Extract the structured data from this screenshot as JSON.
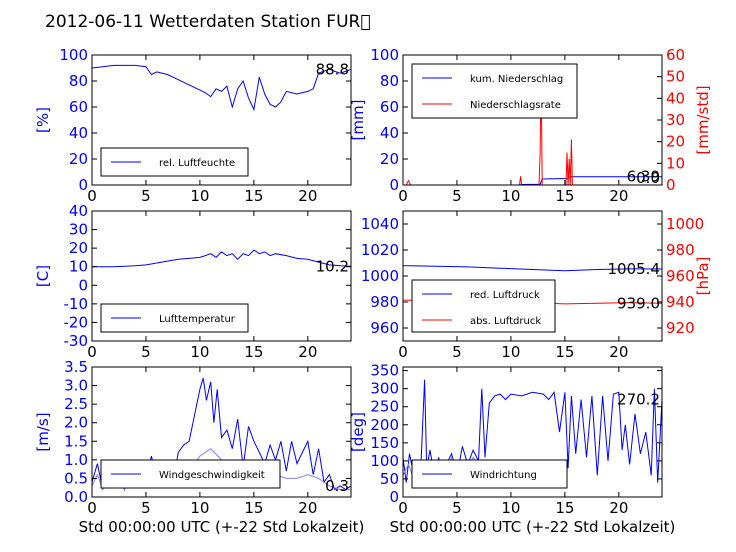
{
  "page": {
    "title": "2012-06-11 Wetterdaten Station FUR\u0000"
  },
  "colors": {
    "blue": "#0000ff",
    "red": "#ff0000",
    "lightblue": "#8080ff",
    "axis": "#000000"
  },
  "chart_data": [
    {
      "id": "p1",
      "type": "line",
      "ylabel": "[%]",
      "xlabel": "",
      "xlim": [
        0,
        24
      ],
      "ylim": [
        0,
        100
      ],
      "xticks": [
        0,
        5,
        10,
        15,
        20
      ],
      "yticks": [
        0,
        20,
        40,
        60,
        80,
        100
      ],
      "last_value": "88.8",
      "legend": "rel. Luftfeuchte",
      "series": [
        {
          "name": "rel. Luftfeuchte",
          "color": "#0000ff",
          "x": [
            0,
            1,
            2,
            3,
            4,
            5,
            5.5,
            6,
            7,
            8,
            9,
            10,
            10.5,
            11,
            11.5,
            12,
            12.5,
            13,
            13.5,
            14,
            14.5,
            15,
            15.5,
            16,
            16.5,
            17,
            17.5,
            18,
            19,
            20,
            20.5,
            21,
            22,
            23,
            24
          ],
          "y": [
            90,
            91,
            92,
            92,
            92,
            91,
            85,
            87,
            85,
            81,
            77,
            73,
            71,
            68,
            74,
            72,
            76,
            60,
            74,
            80,
            67,
            58,
            83,
            70,
            62,
            60,
            64,
            72,
            70,
            72,
            74,
            86,
            89,
            86,
            89
          ]
        }
      ]
    },
    {
      "id": "p2",
      "type": "line",
      "ylabel": "[mm]",
      "ylabel2": "[mm/std]",
      "xlabel": "",
      "xlim": [
        0,
        24
      ],
      "ylim": [
        0,
        100
      ],
      "ylim2": [
        0,
        60
      ],
      "xticks": [
        0,
        5,
        10,
        15,
        20
      ],
      "yticks": [
        0,
        20,
        40,
        60,
        80,
        100
      ],
      "yticks2": [
        0,
        10,
        20,
        30,
        40,
        50,
        60
      ],
      "last_value": "6.39",
      "last_value2": "0.0",
      "legend": [
        "kum. Niederschlag",
        "Niederschlagsrate"
      ],
      "series": [
        {
          "name": "kum. Niederschlag",
          "color": "#0000ff",
          "axis": "left",
          "x": [
            0,
            10.8,
            11,
            12.7,
            12.9,
            15.2,
            15.5,
            24
          ],
          "y": [
            0,
            0,
            0.4,
            0.6,
            4.6,
            5.0,
            6.4,
            6.4
          ]
        },
        {
          "name": "Niederschlagsrate",
          "color": "#ff0000",
          "axis": "right",
          "x": [
            0,
            0.3,
            0.5,
            0.7,
            1,
            10.8,
            10.9,
            11,
            12.6,
            12.7,
            12.8,
            12.9,
            13.1,
            15.1,
            15.2,
            15.3,
            15.4,
            15.5,
            15.6,
            15.7,
            24
          ],
          "y": [
            0,
            0,
            2,
            0,
            0,
            0,
            4,
            0,
            0,
            14,
            53,
            0,
            0,
            0,
            15,
            0,
            12,
            0,
            21,
            0,
            0
          ]
        }
      ]
    },
    {
      "id": "p3",
      "type": "line",
      "ylabel": "[C]",
      "xlabel": "",
      "xlim": [
        0,
        24
      ],
      "ylim": [
        -30,
        40
      ],
      "xticks": [
        0,
        5,
        10,
        15,
        20
      ],
      "yticks": [
        -30,
        -20,
        -10,
        0,
        10,
        20,
        30,
        40
      ],
      "last_value": "10.2",
      "legend": "Lufttemperatur",
      "series": [
        {
          "name": "Lufttemperatur",
          "color": "#0000ff",
          "x": [
            0,
            2,
            4,
            5,
            6,
            7,
            8,
            9,
            10,
            10.5,
            11,
            11.5,
            12,
            12.5,
            13,
            13.5,
            14,
            14.5,
            15,
            15.5,
            16,
            16.5,
            17,
            18,
            19,
            20,
            21,
            22,
            23,
            24
          ],
          "y": [
            10,
            10,
            10.5,
            11,
            12,
            13,
            14,
            14.5,
            15,
            16,
            17,
            15,
            18,
            16,
            17,
            14,
            17,
            16,
            19,
            17,
            18,
            16,
            17,
            16,
            14.5,
            14,
            12.5,
            11,
            10.5,
            10.2
          ]
        }
      ]
    },
    {
      "id": "p4",
      "type": "line",
      "ylabel": "",
      "ylabel2": "[hPa]",
      "xlabel": "",
      "xlim": [
        0,
        24
      ],
      "ylim": [
        950,
        1050
      ],
      "ylim2": [
        910,
        1010
      ],
      "xticks": [
        0,
        5,
        10,
        15,
        20
      ],
      "yticks": [
        960,
        980,
        1000,
        1020,
        1040
      ],
      "yticks2": [
        920,
        940,
        960,
        980,
        1000
      ],
      "last_value": "1005.4",
      "last_value2": "939.0",
      "legend": [
        "red. Luftdruck",
        "abs. Luftdruck"
      ],
      "series": [
        {
          "name": "red. Luftdruck",
          "color": "#0000ff",
          "axis": "left",
          "x": [
            0,
            3,
            6,
            9,
            12,
            15,
            18,
            21,
            24
          ],
          "y": [
            1008,
            1007.5,
            1007,
            1006,
            1005,
            1004,
            1005,
            1005.5,
            1005.4
          ]
        },
        {
          "name": "abs. Luftdruck",
          "color": "#ff0000",
          "axis": "right",
          "x": [
            0,
            3,
            6,
            9,
            12,
            15,
            18,
            21,
            24
          ],
          "y": [
            941.5,
            941,
            940.5,
            940,
            939.5,
            938.5,
            939,
            939.5,
            939.0
          ]
        }
      ]
    },
    {
      "id": "p5",
      "type": "line",
      "ylabel": "[m/s]",
      "xlabel": "Std 00:00:00 UTC (+-22 Std Lokalzeit)",
      "xlim": [
        0,
        24
      ],
      "ylim": [
        0,
        3.5
      ],
      "xticks": [
        0,
        5,
        10,
        15,
        20
      ],
      "yticks": [
        0,
        0.5,
        1.0,
        1.5,
        2.0,
        2.5,
        3.0,
        3.5
      ],
      "last_value": "0.3",
      "legend": "Windgeschwindigkeit",
      "series": [
        {
          "name": "Windgeschwindigkeit",
          "color": "#0000ff",
          "x": [
            0,
            0.5,
            1,
            1.5,
            2,
            2.5,
            3,
            3.5,
            4,
            4.5,
            5,
            5.5,
            6,
            6.5,
            7,
            7.5,
            8,
            8.5,
            9,
            9.5,
            10,
            10.3,
            10.6,
            11,
            11.3,
            11.6,
            12,
            12.5,
            13,
            13.5,
            14,
            14.5,
            15,
            15.5,
            16,
            16.5,
            17,
            17.5,
            18,
            18.5,
            19,
            19.5,
            20,
            20.5,
            21,
            21.5,
            22,
            22.5,
            23,
            23.5,
            24
          ],
          "y": [
            0.4,
            0.9,
            0.2,
            0.7,
            0.3,
            0.6,
            0.2,
            0.8,
            0.3,
            0.5,
            0.4,
            1.1,
            0.5,
            0.7,
            0.6,
            0.4,
            1.2,
            1.4,
            1.5,
            2.2,
            2.9,
            3.2,
            2.6,
            3.1,
            2.0,
            2.9,
            1.6,
            1.8,
            1.3,
            2.1,
            0.8,
            1.9,
            1.5,
            1.2,
            0.9,
            1.4,
            1.0,
            1.5,
            0.7,
            1.5,
            0.9,
            1.2,
            1.5,
            0.6,
            1.3,
            0.4,
            0.6,
            0.2,
            0.3,
            0.2,
            0.3
          ]
        },
        {
          "name": "",
          "color": "#8080ff",
          "x": [
            0,
            0.5,
            1,
            1.5,
            2,
            2.5,
            3,
            3.5,
            4,
            4.5,
            5,
            5.5,
            6,
            6.5,
            7,
            7.5,
            8,
            9,
            10,
            11,
            12,
            13,
            14,
            15,
            16,
            17,
            18,
            19,
            20,
            21,
            22,
            23,
            24
          ],
          "y": [
            0.3,
            0.6,
            0.2,
            0.4,
            0.3,
            0.5,
            0.2,
            0.4,
            0.3,
            0.4,
            0.3,
            0.6,
            0.4,
            0.5,
            0.4,
            0.3,
            0.5,
            0.7,
            1.1,
            1.3,
            1.0,
            0.9,
            0.8,
            0.7,
            0.6,
            0.6,
            0.5,
            0.5,
            0.6,
            0.5,
            0.3,
            0.2,
            0.2
          ]
        }
      ]
    },
    {
      "id": "p6",
      "type": "line",
      "ylabel": "[deg]",
      "xlabel": "Std 00:00:00 UTC (+-22 Std Lokalzeit)",
      "xlim": [
        0,
        24
      ],
      "ylim": [
        0,
        360
      ],
      "xticks": [
        0,
        5,
        10,
        15,
        20
      ],
      "yticks": [
        0,
        50,
        100,
        150,
        200,
        250,
        300,
        350
      ],
      "last_value": "270.2",
      "legend": "Windrichtung",
      "series": [
        {
          "name": "Windrichtung",
          "color": "#0000ff",
          "x": [
            0,
            0.3,
            0.6,
            1,
            1.3,
            1.6,
            2,
            2.2,
            2.5,
            3,
            3.3,
            3.6,
            4,
            4.5,
            5,
            5.5,
            6,
            6.5,
            7,
            7.3,
            7.6,
            8,
            8.5,
            9,
            9.5,
            10,
            11,
            12,
            13,
            13.5,
            14,
            14.5,
            15,
            15.3,
            15.6,
            16,
            16.5,
            17,
            17.5,
            18,
            18.5,
            19,
            19.5,
            20,
            20.3,
            20.6,
            21,
            21.5,
            22,
            22.5,
            23,
            23.3,
            23.6,
            24
          ],
          "y": [
            110,
            40,
            120,
            60,
            100,
            50,
            325,
            80,
            130,
            40,
            110,
            60,
            90,
            120,
            60,
            140,
            90,
            130,
            100,
            300,
            110,
            260,
            280,
            285,
            270,
            285,
            280,
            290,
            285,
            270,
            290,
            180,
            290,
            80,
            280,
            120,
            270,
            110,
            280,
            60,
            280,
            100,
            285,
            290,
            130,
            200,
            90,
            230,
            120,
            180,
            60,
            300,
            40,
            270
          ]
        },
        {
          "name": "",
          "color": "#8080ff",
          "x": [
            0,
            0.5,
            1,
            1.5,
            2,
            2.5,
            3,
            3.5,
            4,
            4.5,
            5,
            5.5,
            6,
            6.5,
            7
          ],
          "y": [
            60,
            90,
            50,
            80,
            60,
            100,
            50,
            90,
            60,
            110,
            70,
            100,
            80,
            110,
            90
          ]
        }
      ]
    }
  ]
}
